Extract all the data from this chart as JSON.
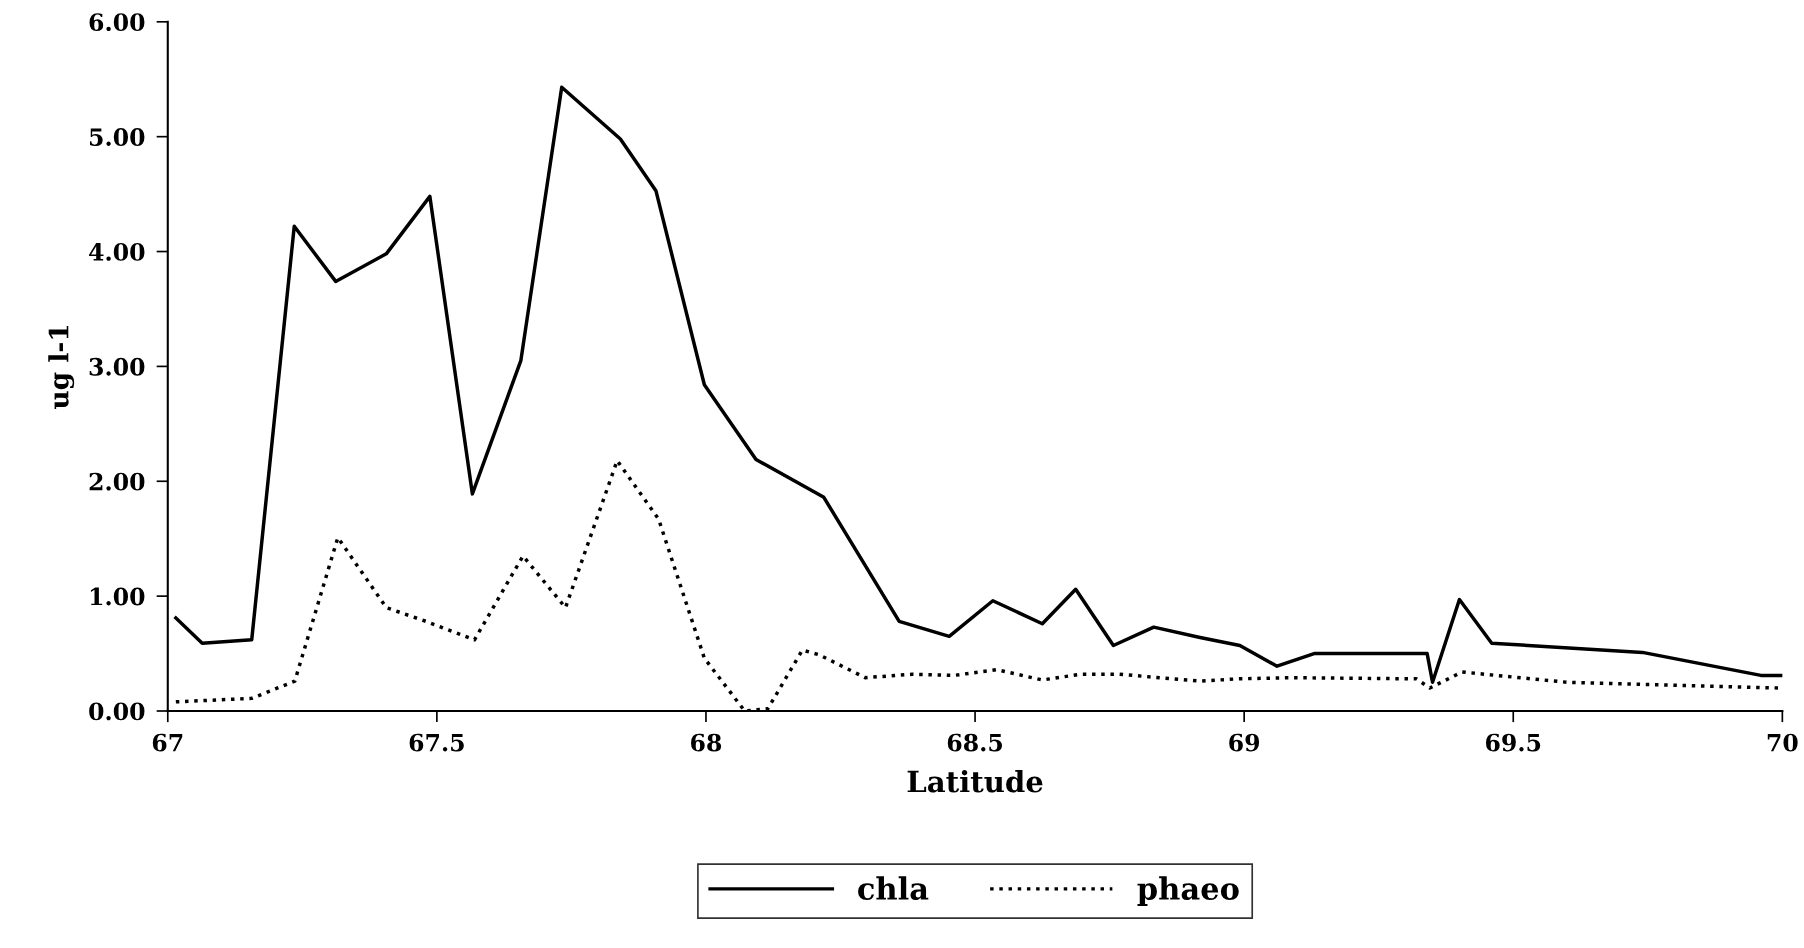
{
  "chart_data": {
    "type": "line",
    "xlabel": "Latitude",
    "ylabel": "ug l-1",
    "xlim": [
      67,
      70
    ],
    "xticks": [
      67,
      67.5,
      68,
      68.5,
      69,
      69.5,
      70
    ],
    "ylim": [
      0,
      6
    ],
    "yticks": [
      {
        "value": 0,
        "label": "0.00"
      },
      {
        "value": 1,
        "label": "1.00"
      },
      {
        "value": 2,
        "label": "2.00"
      },
      {
        "value": 3,
        "label": "3.00"
      },
      {
        "value": 4,
        "label": "4.00"
      },
      {
        "value": 5,
        "label": "5.00"
      },
      {
        "value": 6,
        "label": "6.00"
      }
    ],
    "grid": false,
    "legend": "bottom",
    "marker": "none",
    "series": [
      {
        "name": "chla",
        "color": "#000000",
        "line_style": "solid",
        "x": [
          67.015,
          67.064,
          67.156,
          67.235,
          67.312,
          67.406,
          67.487,
          67.566,
          67.656,
          67.732,
          67.841,
          67.907,
          67.997,
          68.093,
          68.219,
          68.359,
          68.452,
          68.533,
          68.625,
          68.687,
          68.757,
          68.832,
          68.918,
          68.992,
          69.061,
          69.13,
          69.2,
          69.34,
          69.35,
          69.4,
          69.46,
          69.74,
          69.96,
          70.0
        ],
        "values": [
          0.81,
          0.59,
          0.62,
          4.22,
          3.74,
          3.98,
          4.48,
          1.89,
          3.05,
          5.43,
          4.98,
          4.53,
          2.84,
          2.19,
          1.86,
          0.78,
          0.65,
          0.96,
          0.76,
          1.06,
          0.57,
          0.73,
          0.64,
          0.57,
          0.39,
          0.5,
          0.5,
          0.5,
          0.25,
          0.97,
          0.59,
          0.51,
          0.31,
          0.31
        ]
      },
      {
        "name": "phaeo",
        "color": "#000000",
        "line_style": "dotted",
        "x": [
          67.015,
          67.156,
          67.236,
          67.316,
          67.406,
          67.48,
          67.57,
          67.66,
          67.739,
          67.835,
          67.912,
          67.997,
          68.072,
          68.115,
          68.179,
          68.21,
          68.296,
          68.383,
          68.461,
          68.54,
          68.625,
          68.696,
          68.768,
          68.918,
          68.988,
          69.09,
          69.32,
          69.345,
          69.405,
          69.468,
          69.6,
          69.995
        ],
        "values": [
          0.08,
          0.11,
          0.26,
          1.51,
          0.9,
          0.78,
          0.62,
          1.35,
          0.9,
          2.18,
          1.67,
          0.46,
          0.0,
          0.02,
          0.53,
          0.49,
          0.29,
          0.32,
          0.31,
          0.36,
          0.27,
          0.32,
          0.32,
          0.26,
          0.28,
          0.29,
          0.28,
          0.2,
          0.34,
          0.31,
          0.25,
          0.2
        ]
      }
    ]
  }
}
